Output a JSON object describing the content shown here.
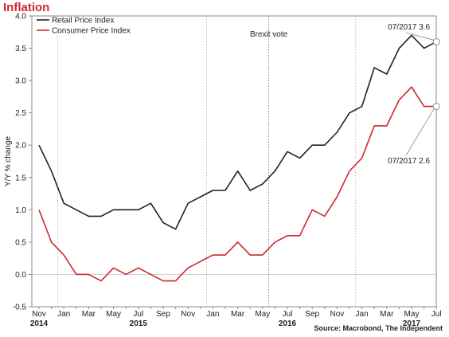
{
  "chart_data": {
    "type": "line",
    "title": "Inflation",
    "ylabel": "Y/Y % change",
    "source": "Source: Macrobond, The Independent",
    "ylim": [
      -0.5,
      4.0
    ],
    "yticks": [
      -0.5,
      0.0,
      0.5,
      1.0,
      1.5,
      2.0,
      2.5,
      3.0,
      3.5,
      4.0
    ],
    "ytick_labels": [
      "-0.5",
      "0.0",
      "0.5",
      "1.0",
      "1.5",
      "2.0",
      "2.5",
      "3.0",
      "3.5",
      "4.0"
    ],
    "x": [
      "2014-11",
      "2014-12",
      "2015-01",
      "2015-02",
      "2015-03",
      "2015-04",
      "2015-05",
      "2015-06",
      "2015-07",
      "2015-08",
      "2015-09",
      "2015-10",
      "2015-11",
      "2015-12",
      "2016-01",
      "2016-02",
      "2016-03",
      "2016-04",
      "2016-05",
      "2016-06",
      "2016-07",
      "2016-08",
      "2016-09",
      "2016-10",
      "2016-11",
      "2016-12",
      "2017-01",
      "2017-02",
      "2017-03",
      "2017-04",
      "2017-05",
      "2017-06",
      "2017-07"
    ],
    "xtick_labels": [
      {
        "x": "2014-11",
        "label": "Nov",
        "year": "2014"
      },
      {
        "x": "2015-01",
        "label": "Jan",
        "year": ""
      },
      {
        "x": "2015-03",
        "label": "Mar",
        "year": ""
      },
      {
        "x": "2015-05",
        "label": "May",
        "year": ""
      },
      {
        "x": "2015-07",
        "label": "Jul",
        "year": "2015"
      },
      {
        "x": "2015-09",
        "label": "Sep",
        "year": ""
      },
      {
        "x": "2015-11",
        "label": "Nov",
        "year": ""
      },
      {
        "x": "2016-01",
        "label": "Jan",
        "year": ""
      },
      {
        "x": "2016-03",
        "label": "Mar",
        "year": ""
      },
      {
        "x": "2016-05",
        "label": "May",
        "year": ""
      },
      {
        "x": "2016-07",
        "label": "Jul",
        "year": "2016"
      },
      {
        "x": "2016-09",
        "label": "Sep",
        "year": ""
      },
      {
        "x": "2016-11",
        "label": "Nov",
        "year": ""
      },
      {
        "x": "2017-01",
        "label": "Jan",
        "year": ""
      },
      {
        "x": "2017-03",
        "label": "Mar",
        "year": ""
      },
      {
        "x": "2017-05",
        "label": "May",
        "year": "2017"
      },
      {
        "x": "2017-07",
        "label": "Jul",
        "year": ""
      }
    ],
    "year_dividers": [
      "2015-01",
      "2016-01",
      "2017-01"
    ],
    "events": [
      {
        "x": "2016-06",
        "label": "Brexit vote"
      }
    ],
    "series": [
      {
        "name": "Retail Price Index",
        "color": "#222222",
        "values": [
          2.0,
          1.6,
          1.1,
          1.0,
          0.9,
          0.9,
          1.0,
          1.0,
          1.0,
          1.1,
          0.8,
          0.7,
          1.1,
          1.2,
          1.3,
          1.3,
          1.6,
          1.3,
          1.4,
          1.6,
          1.9,
          1.8,
          2.0,
          2.0,
          2.2,
          2.5,
          2.6,
          3.2,
          3.1,
          3.5,
          3.7,
          3.5,
          3.6
        ]
      },
      {
        "name": "Consumer Price Index",
        "color": "#d0262e",
        "values": [
          1.0,
          0.5,
          0.3,
          0.0,
          0.0,
          -0.1,
          0.1,
          0.0,
          0.1,
          0.0,
          -0.1,
          -0.1,
          0.1,
          0.2,
          0.3,
          0.3,
          0.5,
          0.3,
          0.3,
          0.5,
          0.6,
          0.6,
          1.0,
          0.9,
          1.2,
          1.6,
          1.8,
          2.3,
          2.3,
          2.7,
          2.9,
          2.6,
          2.6
        ]
      }
    ],
    "annotations": [
      {
        "series": "Retail Price Index",
        "x": "2017-07",
        "label": "07/2017 3.6"
      },
      {
        "series": "Consumer Price Index",
        "x": "2017-07",
        "label": "07/2017 2.6"
      }
    ],
    "grid": false,
    "legend": "top-left"
  }
}
